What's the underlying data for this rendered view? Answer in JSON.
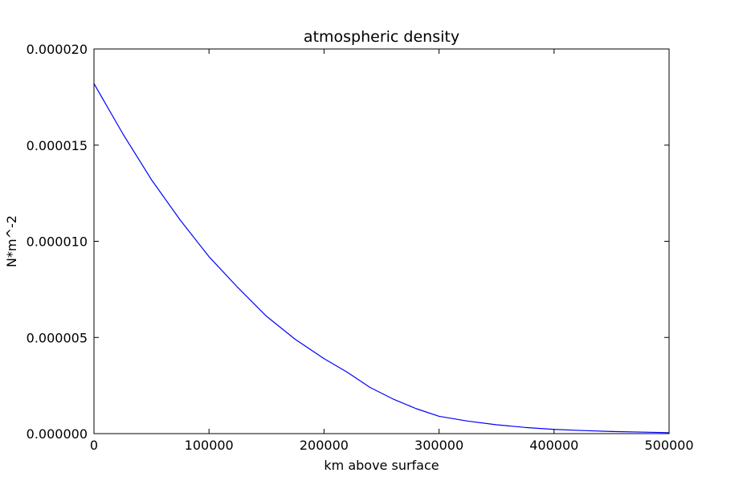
{
  "chart_data": {
    "type": "line",
    "title": "atmospheric density",
    "xlabel": "km above surface",
    "ylabel": "N*m^-2",
    "xlim": [
      0,
      500000
    ],
    "ylim": [
      0,
      2e-05
    ],
    "xticks": [
      0,
      100000,
      200000,
      300000,
      400000,
      500000
    ],
    "yticks": [
      0,
      5e-06,
      1e-05,
      1.5e-05,
      2e-05
    ],
    "xtick_labels": [
      "0",
      "100000",
      "200000",
      "300000",
      "400000",
      "500000"
    ],
    "ytick_labels": [
      "0.000000",
      "0.000005",
      "0.000010",
      "0.000015",
      "0.000020"
    ],
    "grid": false,
    "legend": "none",
    "series": [
      {
        "color": "#0000ff",
        "x": [
          0,
          25000,
          50000,
          75000,
          100000,
          125000,
          150000,
          175000,
          200000,
          220000,
          240000,
          260000,
          280000,
          300000,
          325000,
          350000,
          375000,
          400000,
          425000,
          450000,
          475000,
          500000
        ],
        "y": [
          1.82e-05,
          1.56e-05,
          1.32e-05,
          1.11e-05,
          9.2e-06,
          7.6e-06,
          6.1e-06,
          4.9e-06,
          3.9e-06,
          3.2e-06,
          2.4e-06,
          1.8e-06,
          1.3e-06,
          9e-07,
          6.5e-07,
          4.6e-07,
          3.2e-07,
          2.2e-07,
          1.6e-07,
          1.1e-07,
          8e-08,
          5e-08
        ]
      }
    ]
  }
}
